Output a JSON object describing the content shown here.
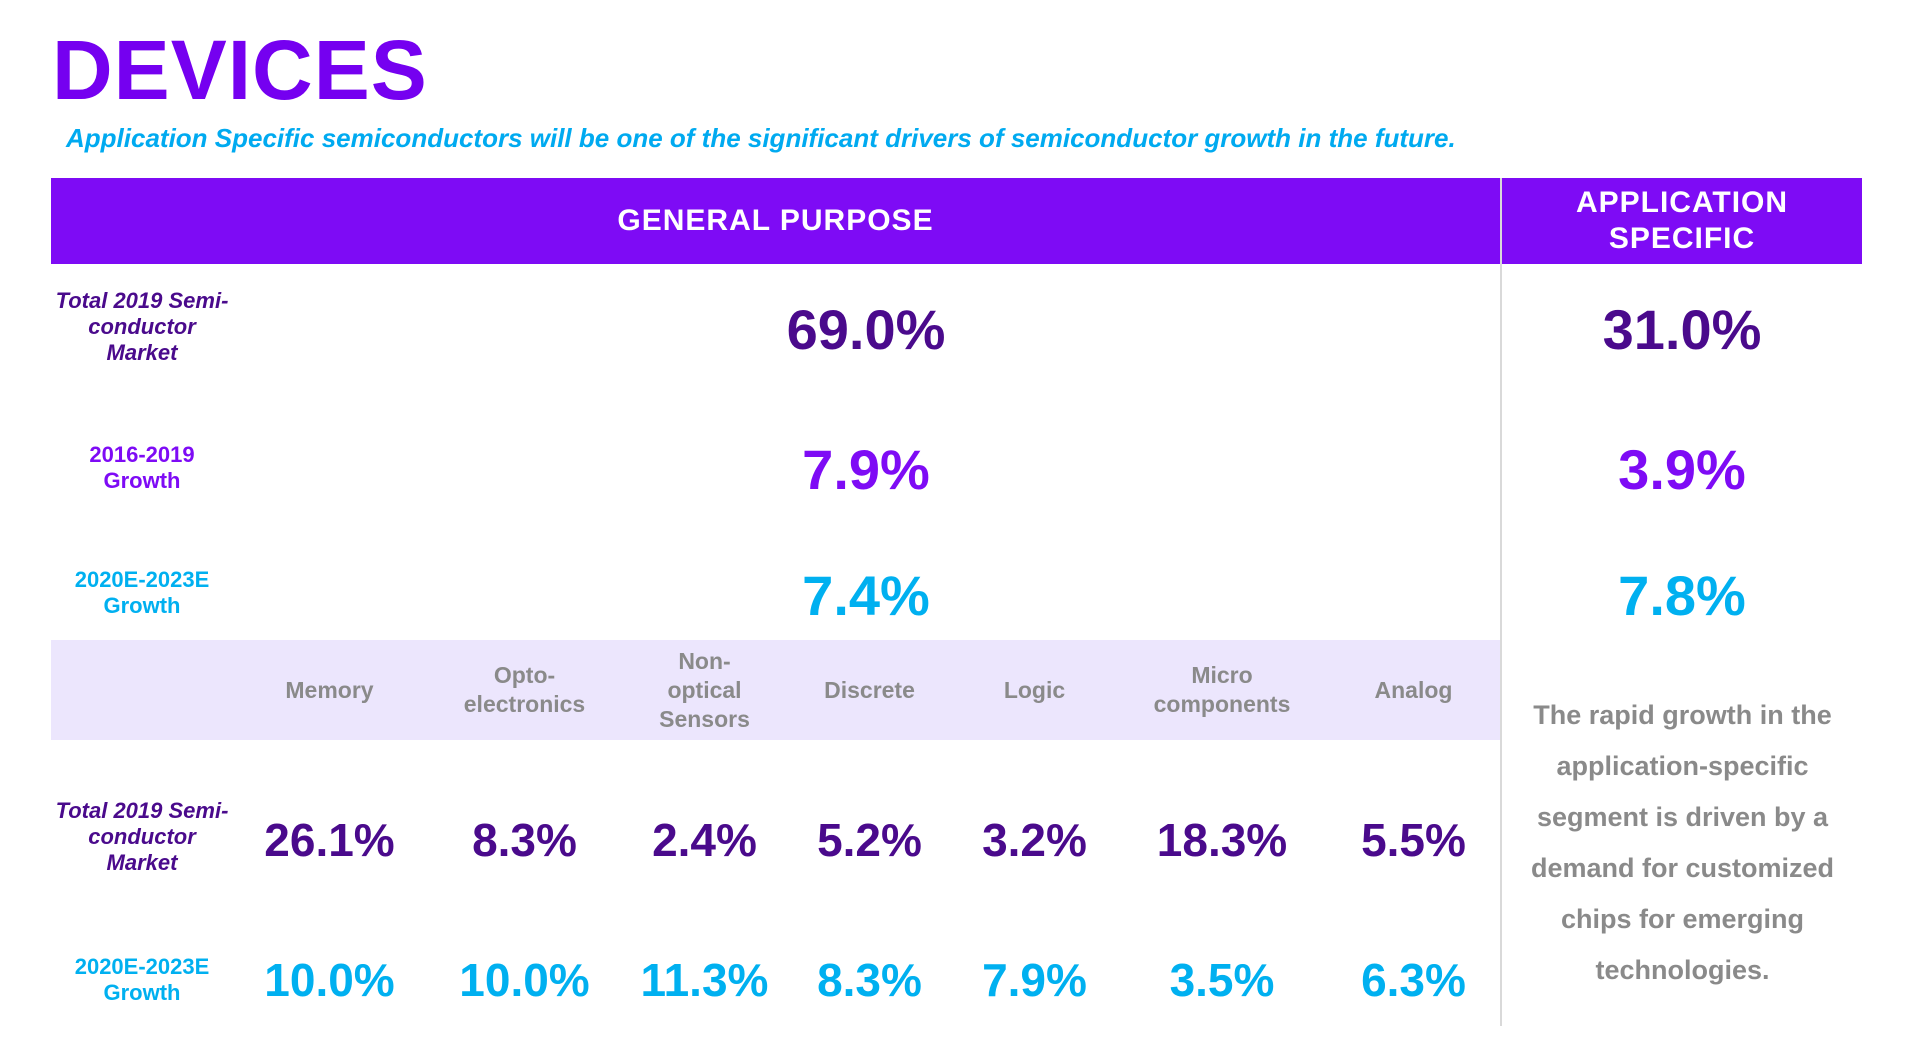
{
  "page": {
    "title": "DEVICES",
    "subtitle": "Application Specific semiconductors will be one of the significant drivers of semiconductor growth in the future."
  },
  "header": {
    "general_purpose": "GENERAL PURPOSE",
    "application_specific": "APPLICATION SPECIFIC"
  },
  "summary_rows": [
    {
      "label": "Total 2019 Semi-conductor Market",
      "general": "69.0%",
      "specific": "31.0%"
    },
    {
      "label": "2016-2019 Growth",
      "general": "7.9%",
      "specific": "3.9%"
    },
    {
      "label": "2020E-2023E Growth",
      "general": "7.4%",
      "specific": "7.8%"
    }
  ],
  "categories": [
    "Memory",
    "Opto-electronics",
    "Non-optical Sensors",
    "Discrete",
    "Logic",
    "Micro components",
    "Analog"
  ],
  "detail_rows": [
    {
      "label": "Total 2019 Semi-conductor Market",
      "values": [
        "26.1%",
        "8.3%",
        "2.4%",
        "5.2%",
        "3.2%",
        "18.3%",
        "5.5%"
      ]
    },
    {
      "label": "2020E-2023E Growth",
      "values": [
        "10.0%",
        "10.0%",
        "11.3%",
        "8.3%",
        "7.9%",
        "3.5%",
        "6.3%"
      ]
    }
  ],
  "note": "The rapid growth in the application-specific segment is driven by a demand for customized chips for emerging technologies.",
  "colors": {
    "title": "#7500f0",
    "subtitle": "#00aaf0",
    "header_bg": "#7e0bf5",
    "dark_purple": "#4a0a8c",
    "cyan": "#00b0f0",
    "band_bg": "#ece6fd",
    "gray_text": "#8a8a8a"
  }
}
